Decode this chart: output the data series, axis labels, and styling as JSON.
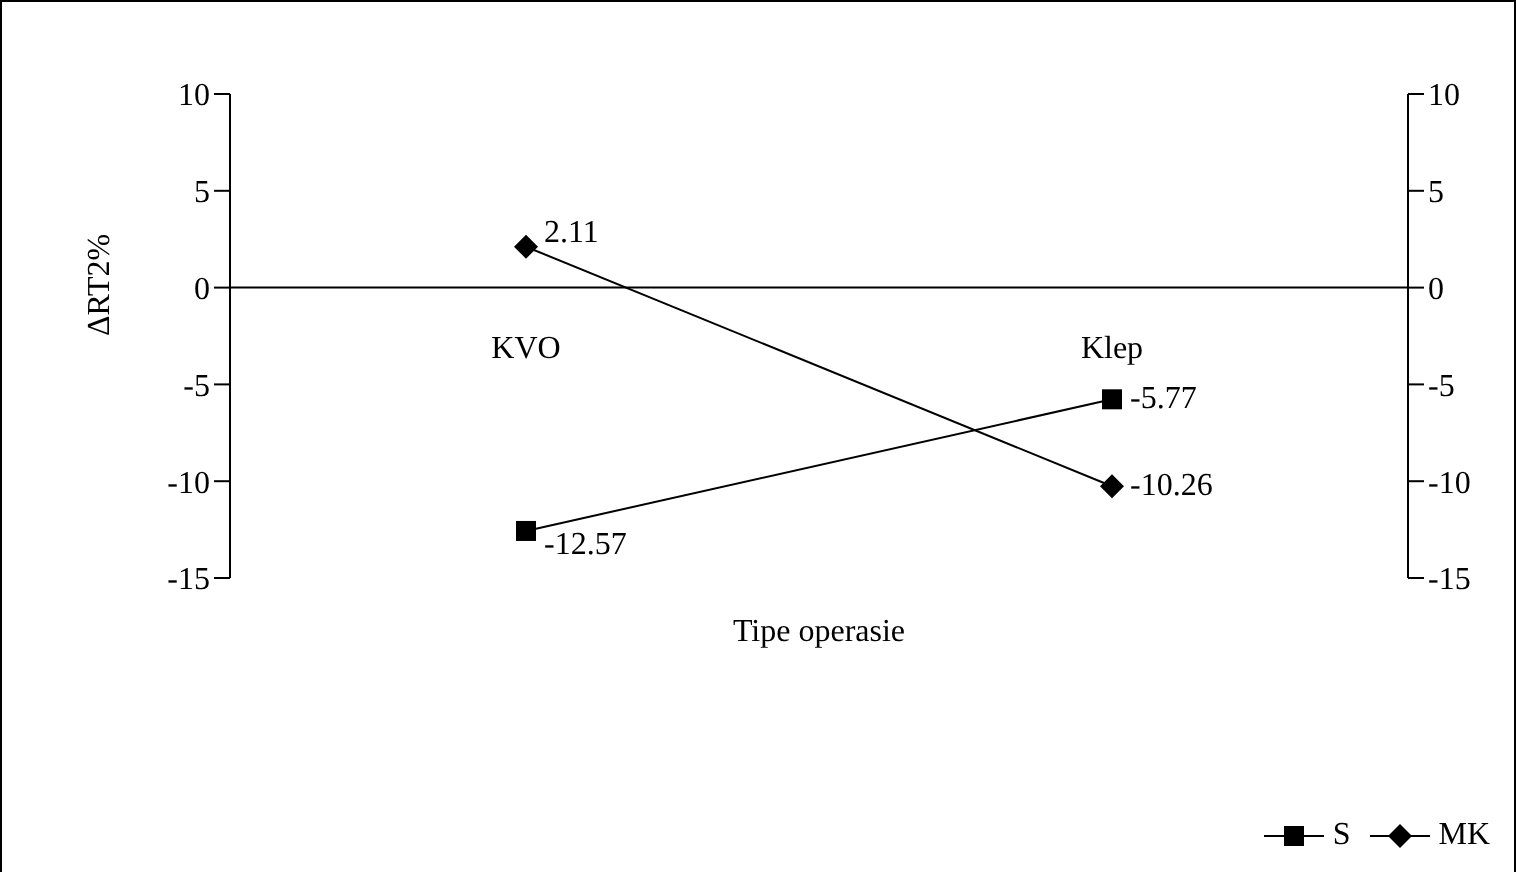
{
  "chart_data": {
    "type": "line",
    "xlabel": "Tipe operasie",
    "ylabel": "ΔRT2%",
    "categories": [
      "KVO",
      "Klep"
    ],
    "series": [
      {
        "name": "S",
        "color": "#000000",
        "marker": "square",
        "values": [
          -12.57,
          -5.77
        ]
      },
      {
        "name": "MK",
        "color": "#000000",
        "marker": "diamond",
        "values": [
          2.11,
          -10.26
        ]
      }
    ],
    "ylim": [
      -15,
      10
    ],
    "yticks": [
      -15,
      -10,
      -5,
      0,
      5,
      10
    ],
    "y2lim": [
      -15,
      10
    ],
    "y2ticks": [
      -15,
      -10,
      -5,
      0,
      5,
      10
    ],
    "data_labels": true,
    "legend": "bottom right"
  }
}
